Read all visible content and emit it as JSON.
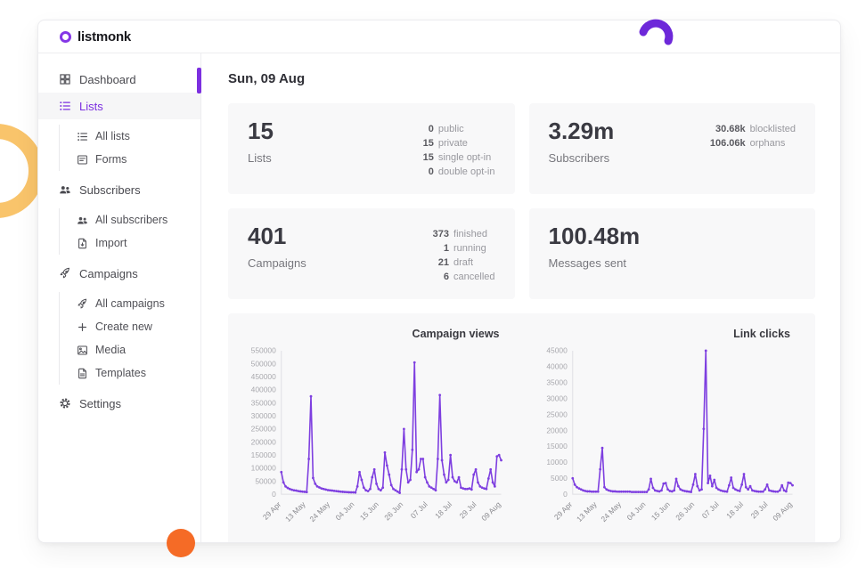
{
  "app": {
    "brand": "listmonk"
  },
  "sidebar": {
    "items": [
      {
        "name": "dashboard",
        "label": "Dashboard",
        "icon": "dashboard-icon",
        "active": false,
        "children": []
      },
      {
        "name": "lists",
        "label": "Lists",
        "icon": "list-icon",
        "active": true,
        "children": [
          {
            "name": "all-lists",
            "label": "All lists",
            "icon": "list-icon"
          },
          {
            "name": "forms",
            "label": "Forms",
            "icon": "form-icon"
          }
        ]
      },
      {
        "name": "subscribers",
        "label": "Subscribers",
        "icon": "people-icon",
        "active": false,
        "children": [
          {
            "name": "all-subscribers",
            "label": "All subscribers",
            "icon": "people-icon"
          },
          {
            "name": "import",
            "label": "Import",
            "icon": "import-icon"
          }
        ]
      },
      {
        "name": "campaigns",
        "label": "Campaigns",
        "icon": "rocket-icon",
        "active": false,
        "children": [
          {
            "name": "all-campaigns",
            "label": "All campaigns",
            "icon": "rocket-icon"
          },
          {
            "name": "create-new",
            "label": "Create new",
            "icon": "plus-icon"
          },
          {
            "name": "media",
            "label": "Media",
            "icon": "image-icon"
          },
          {
            "name": "templates",
            "label": "Templates",
            "icon": "template-icon"
          }
        ]
      },
      {
        "name": "settings",
        "label": "Settings",
        "icon": "gear-icon",
        "active": false,
        "children": []
      }
    ]
  },
  "main": {
    "date_heading": "Sun, 09 Aug",
    "stats": [
      {
        "name": "lists",
        "value": "15",
        "label": "Lists",
        "details": [
          [
            "0",
            "public"
          ],
          [
            "15",
            "private"
          ],
          [
            "15",
            "single opt-in"
          ],
          [
            "0",
            "double opt-in"
          ]
        ]
      },
      {
        "name": "subscribers",
        "value": "3.29m",
        "label": "Subscribers",
        "details": [
          [
            "30.68k",
            "blocklisted"
          ],
          [
            "106.06k",
            "orphans"
          ]
        ]
      },
      {
        "name": "campaigns",
        "value": "401",
        "label": "Campaigns",
        "details": [
          [
            "373",
            "finished"
          ],
          [
            "1",
            "running"
          ],
          [
            "21",
            "draft"
          ],
          [
            "6",
            "cancelled"
          ]
        ]
      },
      {
        "name": "messages-sent",
        "value": "100.48m",
        "label": "Messages sent",
        "details": []
      }
    ]
  },
  "chart_data": [
    {
      "type": "line",
      "title": "Campaign views",
      "legend": "none",
      "grid": false,
      "x_tick_labels": [
        "29 Apr",
        "13 May",
        "24 May",
        "04 Jun",
        "15 Jun",
        "26 Jun",
        "07 Jul",
        "18 Jul",
        "29 Jul",
        "09 Aug"
      ],
      "y_ticks": [
        0,
        50000,
        100000,
        150000,
        200000,
        250000,
        300000,
        350000,
        400000,
        450000,
        500000,
        550000
      ],
      "ylim": [
        0,
        550000
      ],
      "series": [
        {
          "name": "Campaign views",
          "color": "#7e3fe0",
          "values": [
            85000,
            45000,
            30000,
            24000,
            20000,
            17000,
            15000,
            14000,
            12000,
            11000,
            10000,
            9000,
            8000,
            135000,
            375000,
            62000,
            40000,
            30000,
            26000,
            22000,
            20000,
            18000,
            16000,
            15000,
            14000,
            13000,
            12000,
            11000,
            10000,
            9000,
            8500,
            8000,
            7500,
            7000,
            7000,
            6500,
            30000,
            85000,
            55000,
            25000,
            15000,
            12000,
            20000,
            65000,
            95000,
            40000,
            20000,
            15000,
            25000,
            160000,
            110000,
            75000,
            35000,
            20000,
            15000,
            10000,
            5000,
            95000,
            250000,
            95000,
            45000,
            55000,
            170000,
            505000,
            85000,
            95000,
            135000,
            135000,
            65000,
            45000,
            30000,
            25000,
            20000,
            15000,
            135000,
            380000,
            130000,
            75000,
            45000,
            55000,
            150000,
            65000,
            50000,
            45000,
            65000,
            25000,
            22000,
            20000,
            20000,
            22000,
            18000,
            75000,
            95000,
            45000,
            30000,
            25000,
            22000,
            20000,
            60000,
            95000,
            45000,
            30000,
            145000,
            150000,
            130000
          ]
        }
      ]
    },
    {
      "type": "line",
      "title": "Link clicks",
      "legend": "none",
      "grid": false,
      "x_tick_labels": [
        "29 Apr",
        "13 May",
        "24 May",
        "04 Jun",
        "15 Jun",
        "26 Jun",
        "07 Jul",
        "18 Jul",
        "29 Jul",
        "09 Aug"
      ],
      "y_ticks": [
        0,
        5000,
        10000,
        15000,
        20000,
        25000,
        30000,
        35000,
        40000,
        45000
      ],
      "ylim": [
        0,
        45000
      ],
      "series": [
        {
          "name": "Link clicks",
          "color": "#7e3fe0",
          "values": [
            5000,
            3000,
            2200,
            1800,
            1500,
            1200,
            1000,
            900,
            900,
            800,
            800,
            800,
            800,
            7800,
            14500,
            2200,
            1500,
            1200,
            1000,
            900,
            900,
            800,
            800,
            800,
            800,
            800,
            800,
            800,
            700,
            700,
            700,
            700,
            700,
            700,
            700,
            700,
            1500,
            4800,
            2000,
            1200,
            1000,
            900,
            1200,
            3300,
            3500,
            1500,
            1000,
            900,
            1200,
            4800,
            2500,
            1500,
            1200,
            1000,
            900,
            800,
            700,
            3000,
            6300,
            2500,
            1200,
            1500,
            20500,
            45000,
            3500,
            5800,
            2500,
            4500,
            2000,
            1500,
            1200,
            1000,
            900,
            800,
            2800,
            5200,
            2000,
            1500,
            1200,
            1000,
            3000,
            6300,
            2200,
            1500,
            2500,
            1200,
            1000,
            900,
            800,
            800,
            800,
            1500,
            3000,
            1200,
            1000,
            900,
            800,
            800,
            1200,
            2800,
            1200,
            900,
            3600,
            3500,
            2800
          ]
        }
      ]
    }
  ],
  "colors": {
    "accent": "#7c2fe0",
    "chart_line": "#7e3fe0",
    "axis_label": "#a9a9ae",
    "yellow_ring": "#f9c46b",
    "orange_dot": "#f56b26",
    "purple_arc": "#6d28d9"
  }
}
